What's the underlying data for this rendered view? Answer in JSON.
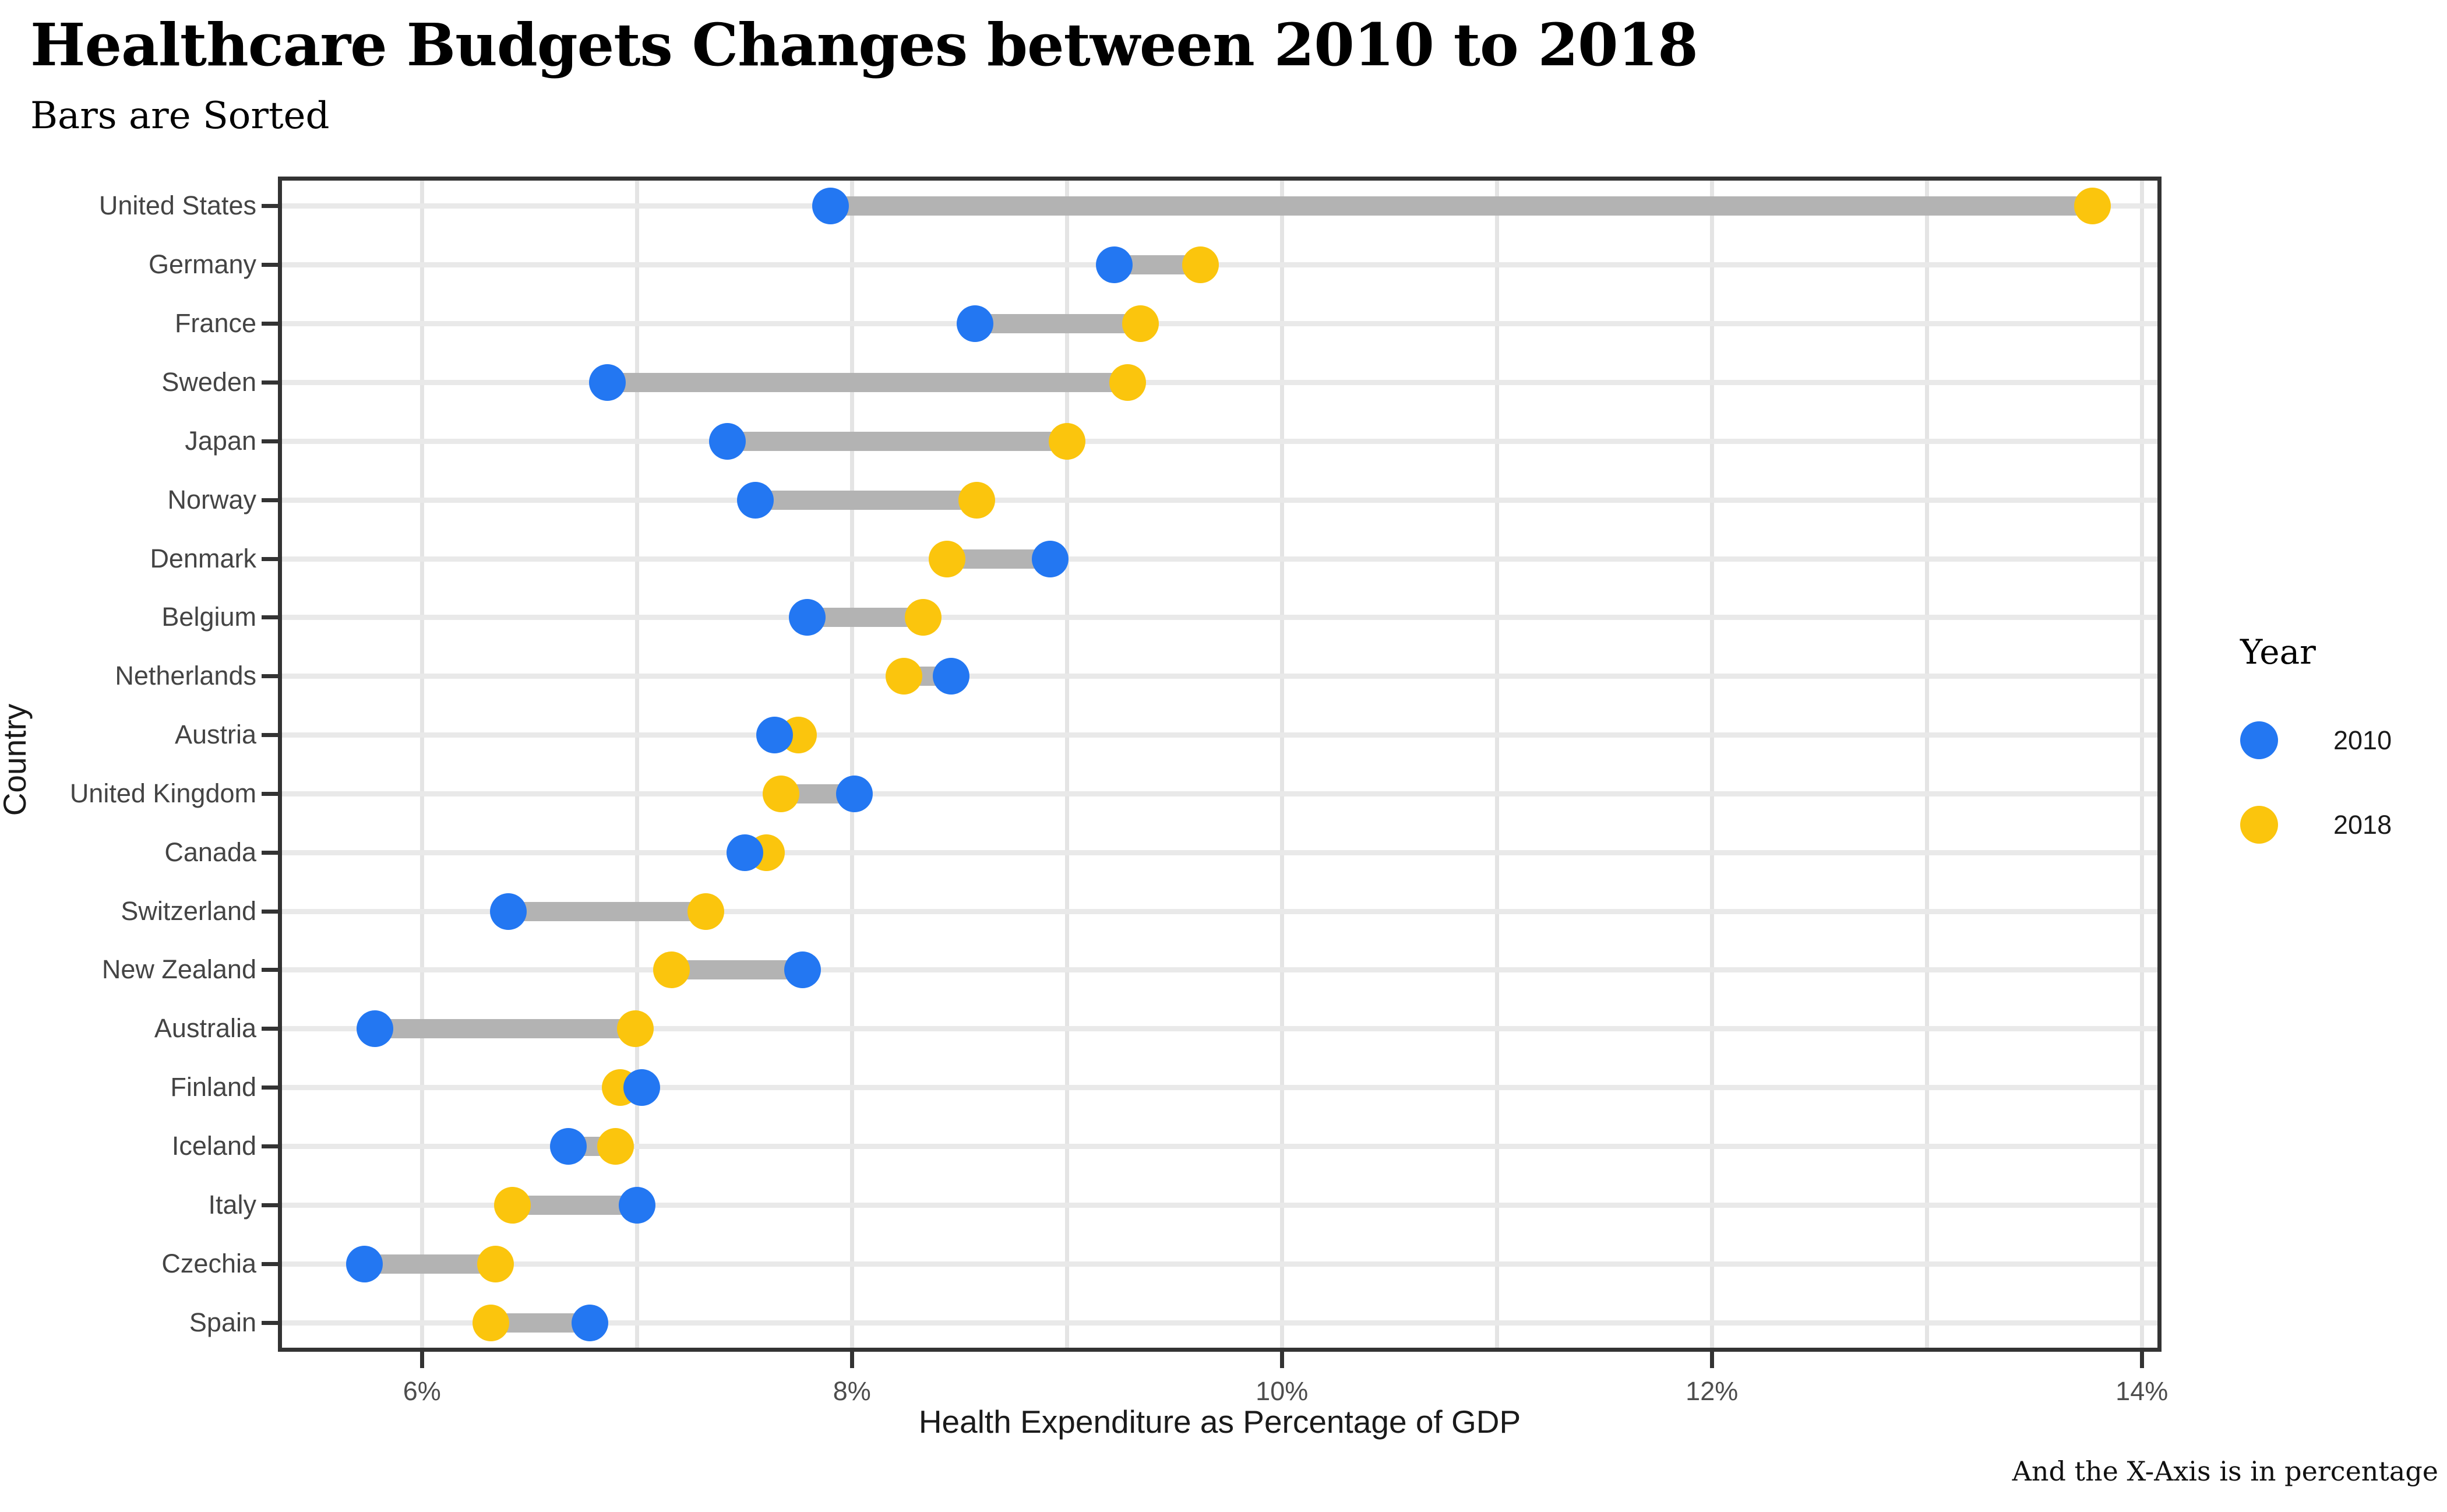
{
  "title": "Healthcare Budgets Changes between 2010 to 2018",
  "subtitle": "Bars are Sorted",
  "caption": "And the X-Axis is in percentage",
  "x_axis": {
    "title": "Health Expenditure as Percentage of GDP",
    "tick_values": [
      6,
      8,
      10,
      12,
      14
    ],
    "tick_labels": [
      "6%",
      "8%",
      "10%",
      "12%",
      "14%"
    ],
    "gridline_values": [
      6,
      7,
      8,
      9,
      10,
      11,
      12,
      13,
      14
    ]
  },
  "y_axis": {
    "title": "Country"
  },
  "legend": {
    "title": "Year",
    "items": [
      {
        "label": "2010",
        "color": "#2377f2"
      },
      {
        "label": "2018",
        "color": "#fbc50d"
      }
    ]
  },
  "colors": {
    "dot_2010": "#2377f2",
    "dot_2018": "#fbc50d",
    "bar": "#b3b3b3",
    "v_gridline": "#e4e4e4",
    "h_gridline": "#e9e9e9",
    "panel_border": "#333333"
  },
  "chart_data": {
    "type": "dumbbell",
    "title": "Healthcare Budgets Changes between 2010 to 2018",
    "subtitle": "Bars are Sorted",
    "caption": "And the X-Axis is in percentage",
    "xlabel": "Health Expenditure as Percentage of GDP",
    "ylabel": "Country",
    "xlim": [
      5.33,
      14.08
    ],
    "x_ticks_percent": [
      6,
      8,
      10,
      12,
      14
    ],
    "sorted_by": "2018 value descending",
    "legend_position": "right",
    "grid": true,
    "categories": [
      "United States",
      "Germany",
      "France",
      "Sweden",
      "Japan",
      "Norway",
      "Denmark",
      "Belgium",
      "Netherlands",
      "Austria",
      "United Kingdom",
      "Canada",
      "Switzerland",
      "New Zealand",
      "Australia",
      "Finland",
      "Iceland",
      "Italy",
      "Czechia",
      "Spain"
    ],
    "series": [
      {
        "name": "2010",
        "values": [
          7.9,
          9.22,
          8.57,
          6.86,
          7.42,
          7.55,
          8.92,
          7.79,
          8.46,
          7.64,
          8.01,
          7.5,
          6.4,
          7.77,
          5.78,
          7.02,
          6.68,
          7.0,
          5.73,
          6.78
        ]
      },
      {
        "name": "2018",
        "values": [
          13.77,
          9.62,
          9.34,
          9.28,
          9.0,
          8.58,
          8.44,
          8.33,
          8.24,
          7.75,
          7.67,
          7.6,
          7.32,
          7.16,
          6.99,
          6.92,
          6.9,
          6.42,
          6.34,
          6.32
        ]
      }
    ]
  }
}
